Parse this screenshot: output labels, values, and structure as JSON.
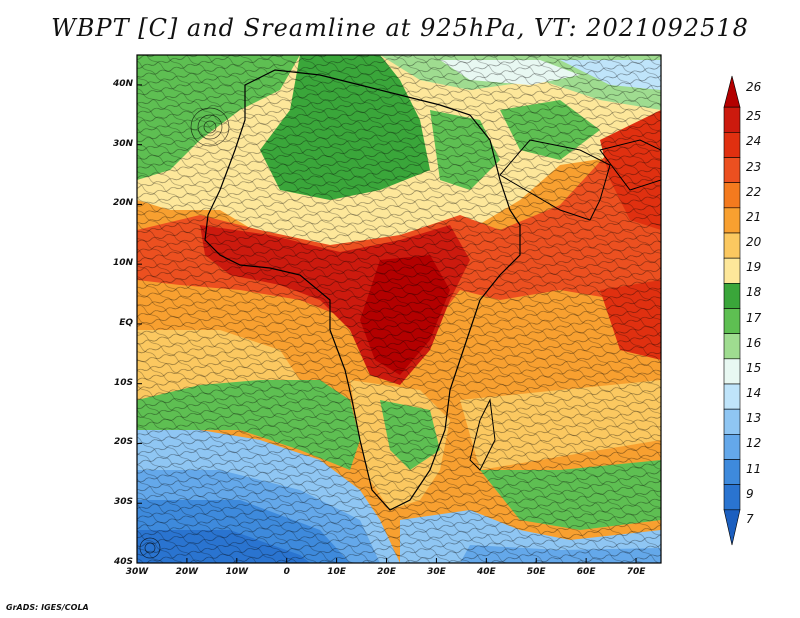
{
  "title": "WBPT [C] and Sreamline at 925hPa, VT: 2021092518",
  "credit": "GrADS: IGES/COLA",
  "map": {
    "lat_labels": [
      "40N",
      "30N",
      "20N",
      "10N",
      "EQ",
      "10S",
      "20S",
      "30S",
      "40S"
    ],
    "lat_values": [
      40,
      30,
      20,
      10,
      0,
      -10,
      -20,
      -30,
      -40
    ],
    "lon_labels": [
      "30W",
      "20W",
      "10W",
      "0",
      "10E",
      "20E",
      "30E",
      "40E",
      "50E",
      "60E",
      "70E"
    ],
    "lon_values": [
      -30,
      -20,
      -10,
      0,
      10,
      20,
      30,
      40,
      50,
      60,
      70
    ],
    "lat_range": [
      -40,
      45
    ],
    "lon_range": [
      -30,
      75
    ],
    "variable": "wet-bulb potential temperature with streamlines",
    "level": "925hPa"
  },
  "colorbar": {
    "labels": [
      "26",
      "25",
      "24",
      "23",
      "22",
      "21",
      "20",
      "19",
      "18",
      "17",
      "16",
      "15",
      "14",
      "13",
      "12",
      "11",
      "9",
      "7"
    ],
    "colors": [
      "#b30000",
      "#cc1a0e",
      "#e03010",
      "#ec5020",
      "#f47a1e",
      "#f8a030",
      "#fbc860",
      "#fde79a",
      "#3aa63a",
      "#5ebf52",
      "#9fdc90",
      "#e8f8f2",
      "#bfe4fa",
      "#8fc6f3",
      "#64a8ea",
      "#3e8adc",
      "#2a74d0",
      "#1c5fbf"
    ]
  }
}
